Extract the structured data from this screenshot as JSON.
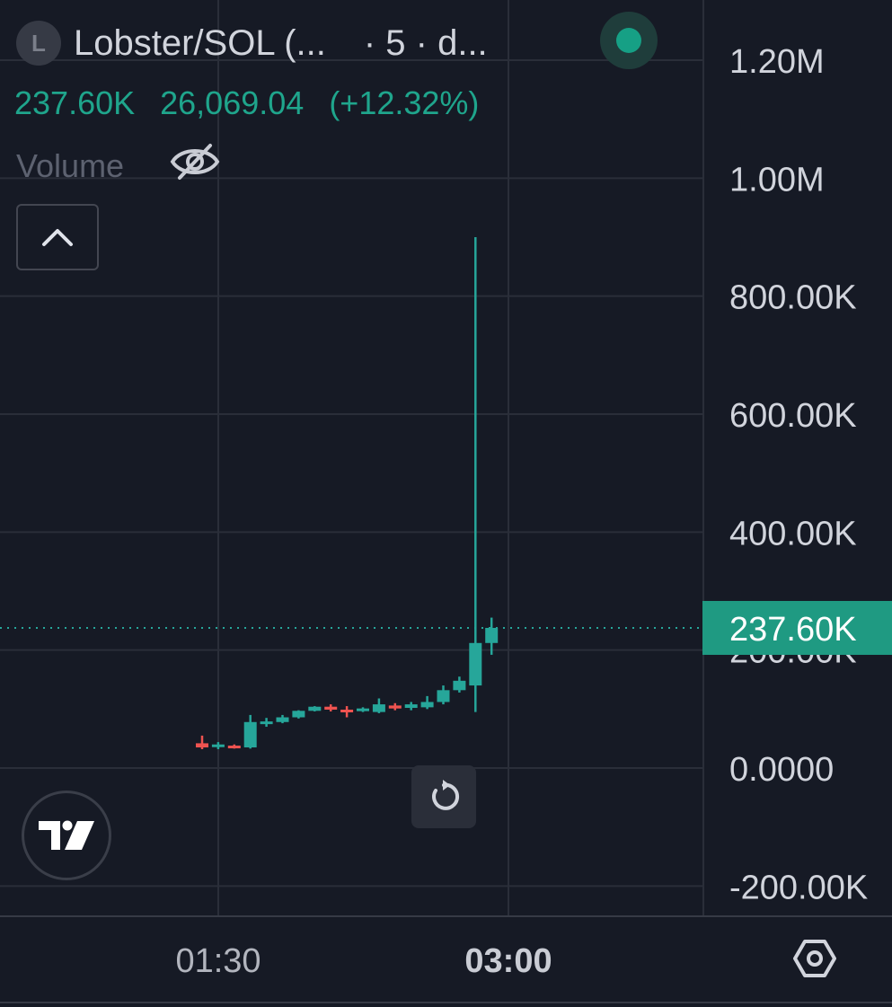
{
  "legend": {
    "symbol_initial": "L",
    "title": "Lobster/SOL (...",
    "interval": "· 5 · d...",
    "close": "237.60K",
    "change": "26,069.04",
    "change_pct": "(+12.32%)",
    "volume_label": "Volume"
  },
  "colors": {
    "background": "#161a25",
    "grid": "#2a2e39",
    "up": "#26a69a",
    "down": "#ef5350",
    "price_tag": "#1f9a82",
    "axis_text": "#d1d4dc"
  },
  "icons": {
    "symbol": "symbol-letter-badge",
    "status": "market-status-dot",
    "visibility": "eye-off-icon",
    "collapse": "chevron-up-icon",
    "reset": "reset-rotate-icon",
    "logo": "tradingview-logo",
    "settings": "settings-hexagon-icon"
  },
  "chart_data": {
    "type": "candlestick",
    "y_axis": {
      "min": -200000,
      "max": 1200000,
      "ticks": [
        {
          "value": 1200000,
          "label": "1.20M"
        },
        {
          "value": 1000000,
          "label": "1.00M"
        },
        {
          "value": 800000,
          "label": "800.00K"
        },
        {
          "value": 600000,
          "label": "600.00K"
        },
        {
          "value": 400000,
          "label": "400.00K"
        },
        {
          "value": 200000,
          "label": "200.00K"
        },
        {
          "value": 0,
          "label": "0.0000"
        },
        {
          "value": -200000,
          "label": "-200.00K"
        }
      ]
    },
    "x_axis": {
      "ticks": [
        {
          "label": "01:30",
          "bold": false,
          "index": 1
        },
        {
          "label": "03:00",
          "bold": true,
          "index": 19
        }
      ]
    },
    "last_price": {
      "value": 237600,
      "label": "237.60K"
    },
    "grid": true,
    "candles": [
      {
        "o": 42000,
        "h": 55000,
        "l": 32000,
        "c": 35000
      },
      {
        "o": 36000,
        "h": 44000,
        "l": 32000,
        "c": 40000
      },
      {
        "o": 38000,
        "h": 40000,
        "l": 33000,
        "c": 34000
      },
      {
        "o": 35000,
        "h": 90000,
        "l": 33000,
        "c": 78000
      },
      {
        "o": 78000,
        "h": 85000,
        "l": 70000,
        "c": 79000
      },
      {
        "o": 78000,
        "h": 90000,
        "l": 76000,
        "c": 86000
      },
      {
        "o": 86000,
        "h": 98000,
        "l": 84000,
        "c": 97000
      },
      {
        "o": 97000,
        "h": 105000,
        "l": 96000,
        "c": 104000
      },
      {
        "o": 104000,
        "h": 108000,
        "l": 96000,
        "c": 99000
      },
      {
        "o": 99000,
        "h": 105000,
        "l": 86000,
        "c": 98000
      },
      {
        "o": 97000,
        "h": 103000,
        "l": 95000,
        "c": 101000
      },
      {
        "o": 95000,
        "h": 118000,
        "l": 93000,
        "c": 108000
      },
      {
        "o": 106000,
        "h": 110000,
        "l": 98000,
        "c": 101000
      },
      {
        "o": 102000,
        "h": 112000,
        "l": 98000,
        "c": 108000
      },
      {
        "o": 103000,
        "h": 122000,
        "l": 100000,
        "c": 112000
      },
      {
        "o": 112000,
        "h": 140000,
        "l": 108000,
        "c": 132000
      },
      {
        "o": 132000,
        "h": 155000,
        "l": 128000,
        "c": 148000
      },
      {
        "o": 140000,
        "h": 900000,
        "l": 95000,
        "c": 212000
      },
      {
        "o": 212000,
        "h": 255000,
        "l": 192000,
        "c": 237600
      }
    ]
  }
}
